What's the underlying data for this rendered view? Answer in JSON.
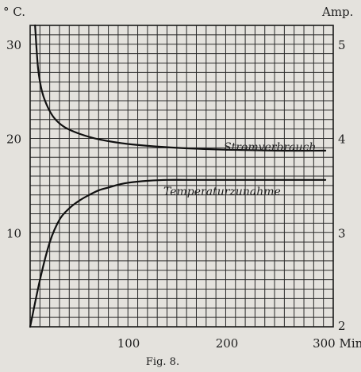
{
  "caption": "Fig. 8.",
  "chart_data": {
    "type": "line",
    "title": "",
    "grid": true,
    "x_axis": {
      "range": [
        0,
        308
      ],
      "ticks": [
        100,
        200
      ],
      "tick_labels": [
        "100",
        "200"
      ],
      "last_tick": 300,
      "last_tick_label": "300 Min."
    },
    "y_left": {
      "unit_label": "° C.",
      "range": [
        0,
        32
      ],
      "ticks": [
        10,
        20,
        30
      ],
      "tick_labels": [
        "10",
        "20",
        "30"
      ]
    },
    "y_right": {
      "unit_label": "Amp.",
      "range": [
        2,
        5.2
      ],
      "ticks": [
        2,
        3,
        4,
        5
      ],
      "tick_labels": [
        "2",
        "3",
        "4",
        "5"
      ]
    },
    "series": [
      {
        "name": "Stromverbrauch",
        "axis": "right",
        "x": [
          5,
          8,
          12,
          18,
          25,
          35,
          50,
          70,
          100,
          150,
          200,
          250,
          300
        ],
        "y": [
          5.2,
          4.75,
          4.5,
          4.33,
          4.21,
          4.12,
          4.05,
          3.99,
          3.94,
          3.9,
          3.88,
          3.87,
          3.87
        ]
      },
      {
        "name": "Temperaturzunahme",
        "axis": "left",
        "x": [
          0,
          10,
          20,
          30,
          40,
          50,
          60,
          70,
          80,
          90,
          100,
          120,
          140,
          160,
          200,
          250,
          300
        ],
        "y": [
          0,
          5.0,
          9.0,
          11.4,
          12.6,
          13.4,
          14.0,
          14.5,
          14.8,
          15.1,
          15.3,
          15.5,
          15.6,
          15.6,
          15.6,
          15.6,
          15.6
        ]
      }
    ]
  }
}
